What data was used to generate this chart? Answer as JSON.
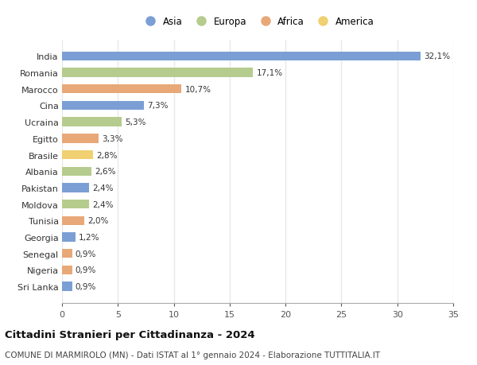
{
  "countries": [
    "India",
    "Romania",
    "Marocco",
    "Cina",
    "Ucraina",
    "Egitto",
    "Brasile",
    "Albania",
    "Pakistan",
    "Moldova",
    "Tunisia",
    "Georgia",
    "Senegal",
    "Nigeria",
    "Sri Lanka"
  ],
  "values": [
    32.1,
    17.1,
    10.7,
    7.3,
    5.3,
    3.3,
    2.8,
    2.6,
    2.4,
    2.4,
    2.0,
    1.2,
    0.9,
    0.9,
    0.9
  ],
  "labels": [
    "32,1%",
    "17,1%",
    "10,7%",
    "7,3%",
    "5,3%",
    "3,3%",
    "2,8%",
    "2,6%",
    "2,4%",
    "2,4%",
    "2,0%",
    "1,2%",
    "0,9%",
    "0,9%",
    "0,9%"
  ],
  "continents": [
    "Asia",
    "Europa",
    "Africa",
    "Asia",
    "Europa",
    "Africa",
    "America",
    "Europa",
    "Asia",
    "Europa",
    "Africa",
    "Asia",
    "Africa",
    "Africa",
    "Asia"
  ],
  "continent_colors": {
    "Asia": "#7b9fd4",
    "Europa": "#b5cc8e",
    "Africa": "#e8a878",
    "America": "#f0d070"
  },
  "legend_order": [
    "Asia",
    "Europa",
    "Africa",
    "America"
  ],
  "xlim": [
    0,
    35
  ],
  "xticks": [
    0,
    5,
    10,
    15,
    20,
    25,
    30,
    35
  ],
  "title": "Cittadini Stranieri per Cittadinanza - 2024",
  "subtitle": "COMUNE DI MARMIROLO (MN) - Dati ISTAT al 1° gennaio 2024 - Elaborazione TUTTITALIA.IT",
  "background_color": "#ffffff",
  "grid_color": "#e8e8e8",
  "bar_height": 0.55
}
